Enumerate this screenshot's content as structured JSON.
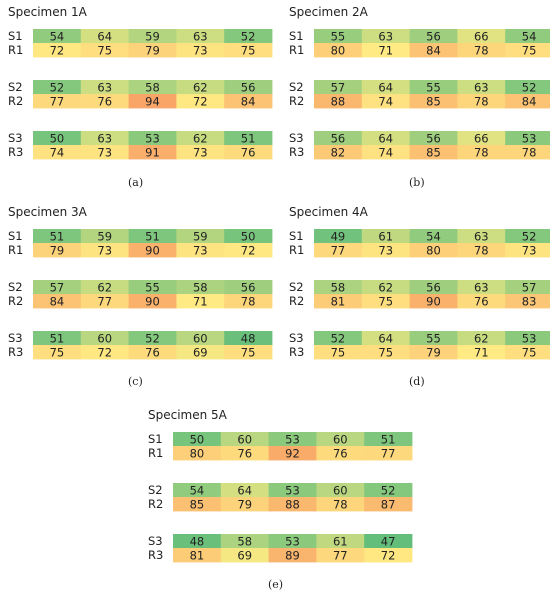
{
  "chart_data": [
    {
      "type": "heatmap",
      "title": "Specimen 1A",
      "caption": "(a)",
      "columns": 5,
      "groups": [
        {
          "rows": [
            {
              "label": "S1",
              "values": [
                54,
                64,
                59,
                63,
                52
              ]
            },
            {
              "label": "R1",
              "values": [
                72,
                75,
                79,
                73,
                75
              ]
            }
          ]
        },
        {
          "rows": [
            {
              "label": "S2",
              "values": [
                52,
                63,
                58,
                62,
                56
              ]
            },
            {
              "label": "R2",
              "values": [
                77,
                76,
                94,
                72,
                84
              ]
            }
          ]
        },
        {
          "rows": [
            {
              "label": "S3",
              "values": [
                50,
                63,
                53,
                62,
                51
              ]
            },
            {
              "label": "R3",
              "values": [
                74,
                73,
                91,
                73,
                76
              ]
            }
          ]
        }
      ]
    },
    {
      "type": "heatmap",
      "title": "Specimen 2A",
      "caption": "(b)",
      "columns": 5,
      "groups": [
        {
          "rows": [
            {
              "label": "S1",
              "values": [
                55,
                63,
                56,
                66,
                54
              ]
            },
            {
              "label": "R1",
              "values": [
                80,
                71,
                84,
                78,
                75
              ]
            }
          ]
        },
        {
          "rows": [
            {
              "label": "S2",
              "values": [
                57,
                64,
                55,
                63,
                52
              ]
            },
            {
              "label": "R2",
              "values": [
                88,
                74,
                85,
                78,
                84
              ]
            }
          ]
        },
        {
          "rows": [
            {
              "label": "S3",
              "values": [
                56,
                64,
                56,
                66,
                53
              ]
            },
            {
              "label": "R3",
              "values": [
                82,
                74,
                85,
                78,
                78
              ]
            }
          ]
        }
      ]
    },
    {
      "type": "heatmap",
      "title": "Specimen 3A",
      "caption": "(c)",
      "columns": 5,
      "groups": [
        {
          "rows": [
            {
              "label": "S1",
              "values": [
                51,
                59,
                51,
                59,
                50
              ]
            },
            {
              "label": "R1",
              "values": [
                79,
                73,
                90,
                73,
                72
              ]
            }
          ]
        },
        {
          "rows": [
            {
              "label": "S2",
              "values": [
                57,
                62,
                55,
                58,
                56
              ]
            },
            {
              "label": "R2",
              "values": [
                84,
                77,
                90,
                71,
                78
              ]
            }
          ]
        },
        {
          "rows": [
            {
              "label": "S3",
              "values": [
                51,
                60,
                52,
                60,
                48
              ]
            },
            {
              "label": "R3",
              "values": [
                75,
                72,
                76,
                69,
                75
              ]
            }
          ]
        }
      ]
    },
    {
      "type": "heatmap",
      "title": "Specimen 4A",
      "caption": "(d)",
      "columns": 5,
      "groups": [
        {
          "rows": [
            {
              "label": "S1",
              "values": [
                49,
                61,
                54,
                63,
                52
              ]
            },
            {
              "label": "R1",
              "values": [
                77,
                73,
                80,
                78,
                73
              ]
            }
          ]
        },
        {
          "rows": [
            {
              "label": "S2",
              "values": [
                58,
                62,
                56,
                63,
                57
              ]
            },
            {
              "label": "R2",
              "values": [
                81,
                75,
                90,
                76,
                83
              ]
            }
          ]
        },
        {
          "rows": [
            {
              "label": "S3",
              "values": [
                52,
                64,
                55,
                62,
                53
              ]
            },
            {
              "label": "R3",
              "values": [
                75,
                75,
                79,
                71,
                75
              ]
            }
          ]
        }
      ]
    },
    {
      "type": "heatmap",
      "title": "Specimen 5A",
      "caption": "(e)",
      "columns": 5,
      "groups": [
        {
          "rows": [
            {
              "label": "S1",
              "values": [
                50,
                60,
                53,
                60,
                51
              ]
            },
            {
              "label": "R1",
              "values": [
                80,
                76,
                92,
                76,
                77
              ]
            }
          ]
        },
        {
          "rows": [
            {
              "label": "S2",
              "values": [
                54,
                64,
                53,
                60,
                52
              ]
            },
            {
              "label": "R2",
              "values": [
                85,
                79,
                88,
                78,
                87
              ]
            }
          ]
        },
        {
          "rows": [
            {
              "label": "S3",
              "values": [
                48,
                58,
                53,
                61,
                47
              ]
            },
            {
              "label": "R3",
              "values": [
                81,
                69,
                89,
                77,
                72
              ]
            }
          ]
        }
      ]
    }
  ],
  "color_scale": {
    "min_value": 47,
    "max_value": 94,
    "stops": [
      "#63be7b",
      "#ffeb84",
      "#f8a567"
    ]
  }
}
